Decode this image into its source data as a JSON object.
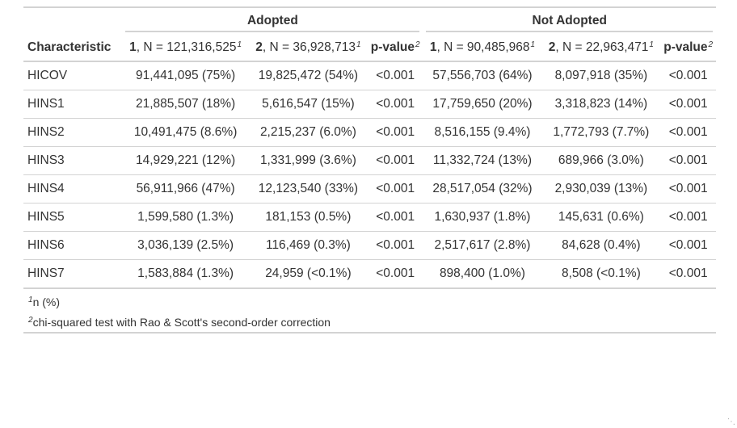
{
  "table": {
    "spanners": [
      "Adopted",
      "Not Adopted"
    ],
    "header": {
      "characteristic": "Characteristic",
      "columns": [
        {
          "group": "1",
          "n_text": ", N = 121,316,525",
          "fn": "1"
        },
        {
          "group": "2",
          "n_text": ", N = 36,928,713",
          "fn": "1"
        },
        {
          "label": "p-value",
          "fn": "2"
        },
        {
          "group": "1",
          "n_text": ", N = 90,485,968",
          "fn": "1"
        },
        {
          "group": "2",
          "n_text": ", N = 22,963,471",
          "fn": "1"
        },
        {
          "label": "p-value",
          "fn": "2"
        }
      ]
    },
    "rows": [
      {
        "label": "HICOV",
        "cells": [
          "91,441,095 (75%)",
          "19,825,472 (54%)",
          "<0.001",
          "57,556,703 (64%)",
          "8,097,918 (35%)",
          "<0.001"
        ]
      },
      {
        "label": "HINS1",
        "cells": [
          "21,885,507 (18%)",
          "5,616,547 (15%)",
          "<0.001",
          "17,759,650 (20%)",
          "3,318,823 (14%)",
          "<0.001"
        ]
      },
      {
        "label": "HINS2",
        "cells": [
          "10,491,475 (8.6%)",
          "2,215,237 (6.0%)",
          "<0.001",
          "8,516,155 (9.4%)",
          "1,772,793 (7.7%)",
          "<0.001"
        ]
      },
      {
        "label": "HINS3",
        "cells": [
          "14,929,221 (12%)",
          "1,331,999 (3.6%)",
          "<0.001",
          "11,332,724 (13%)",
          "689,966 (3.0%)",
          "<0.001"
        ]
      },
      {
        "label": "HINS4",
        "cells": [
          "56,911,966 (47%)",
          "12,123,540 (33%)",
          "<0.001",
          "28,517,054 (32%)",
          "2,930,039 (13%)",
          "<0.001"
        ]
      },
      {
        "label": "HINS5",
        "cells": [
          "1,599,580 (1.3%)",
          "181,153 (0.5%)",
          "<0.001",
          "1,630,937 (1.8%)",
          "145,631 (0.6%)",
          "<0.001"
        ]
      },
      {
        "label": "HINS6",
        "cells": [
          "3,036,139 (2.5%)",
          "116,469 (0.3%)",
          "<0.001",
          "2,517,617 (2.8%)",
          "84,628 (0.4%)",
          "<0.001"
        ]
      },
      {
        "label": "HINS7",
        "cells": [
          "1,583,884 (1.3%)",
          "24,959 (<0.1%)",
          "<0.001",
          "898,400 (1.0%)",
          "8,508 (<0.1%)",
          "<0.001"
        ]
      }
    ],
    "footnotes": [
      {
        "mark": "1",
        "text": "n (%)"
      },
      {
        "mark": "2",
        "text": "chi-squared test with Rao & Scott's second-order correction"
      }
    ]
  }
}
